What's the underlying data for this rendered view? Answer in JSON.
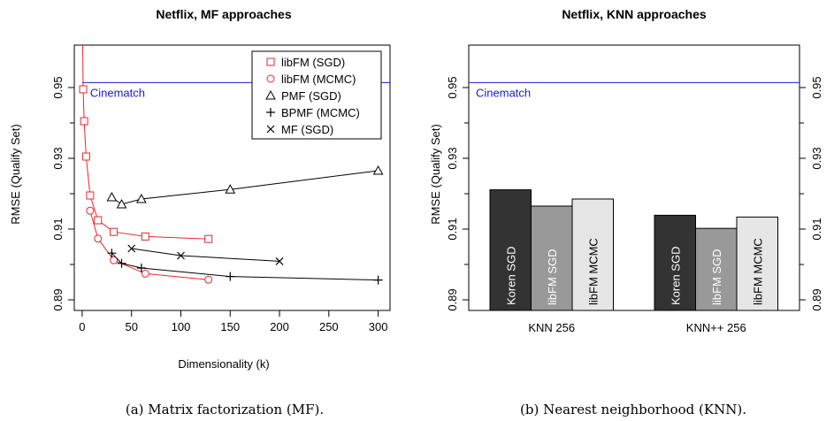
{
  "colors": {
    "red": "#e8272b",
    "black": "#000000",
    "blue": "#1a1ad6",
    "bar_dark": "#333333",
    "bar_mid": "#999999",
    "bar_light": "#e6e6e6"
  },
  "chart_data": [
    {
      "type": "line",
      "title": "Netflix, MF approaches",
      "xlabel": "Dimensionality (k)",
      "ylabel": "RMSE (Qualify Set)",
      "xlim": [
        -8,
        312
      ],
      "ylim": [
        0.887,
        0.962
      ],
      "xticks": [
        0,
        50,
        100,
        150,
        200,
        250,
        300
      ],
      "yticks": [
        0.89,
        0.91,
        0.93,
        0.95
      ],
      "ytick_labels": [
        "0.89",
        "0.91",
        "0.93",
        "0.95"
      ],
      "legend_position": "top-right",
      "reference_line": {
        "label": "Cinematch",
        "y": 0.9514
      },
      "series": [
        {
          "name": "libFM (SGD)",
          "marker": "square",
          "color": "red",
          "x": [
            1,
            2,
            4,
            8,
            16,
            32,
            64,
            128
          ],
          "y": [
            0.9495,
            0.9405,
            0.9305,
            0.9195,
            0.9125,
            0.9092,
            0.9079,
            0.9072
          ]
        },
        {
          "name": "libFM (MCMC)",
          "marker": "circle",
          "color": "red",
          "x": [
            8,
            16,
            32,
            64,
            128
          ],
          "y": [
            0.9152,
            0.9073,
            0.9012,
            0.8974,
            0.8957
          ]
        },
        {
          "name": "PMF (SGD)",
          "marker": "triangle",
          "color": "black",
          "x": [
            30,
            40,
            60,
            150,
            300
          ],
          "y": [
            0.919,
            0.917,
            0.9185,
            0.9212,
            0.9265
          ]
        },
        {
          "name": "BPMF (MCMC)",
          "marker": "plus",
          "color": "black",
          "x": [
            30,
            40,
            60,
            150,
            300
          ],
          "y": [
            0.9032,
            0.9003,
            0.899,
            0.8966,
            0.8956
          ]
        },
        {
          "name": "MF (SGD)",
          "marker": "cross",
          "color": "black",
          "x": [
            50,
            100,
            200
          ],
          "y": [
            0.9045,
            0.9025,
            0.9009
          ]
        }
      ]
    },
    {
      "type": "bar",
      "title": "Netflix, KNN approaches",
      "ylabel": "RMSE (Qualify Set)",
      "ylim": [
        0.887,
        0.962
      ],
      "yticks": [
        0.89,
        0.91,
        0.93,
        0.95
      ],
      "ytick_labels": [
        "0.89",
        "0.91",
        "0.93",
        "0.95"
      ],
      "categories": [
        "KNN 256",
        "KNN++ 256"
      ],
      "reference_line": {
        "label": "Cinematch",
        "y": 0.9514
      },
      "series": [
        {
          "name": "Koren SGD",
          "color": "bar_dark",
          "values": [
            0.9211,
            0.9139
          ]
        },
        {
          "name": "libFM SGD",
          "color": "bar_mid",
          "values": [
            0.9165,
            0.9102
          ]
        },
        {
          "name": "libFM MCMC",
          "color": "bar_light",
          "values": [
            0.9185,
            0.9134
          ]
        }
      ]
    }
  ],
  "captions": {
    "left": "(a)  Matrix factorization (MF).",
    "right": "(b)  Nearest neighborhood (KNN)."
  }
}
